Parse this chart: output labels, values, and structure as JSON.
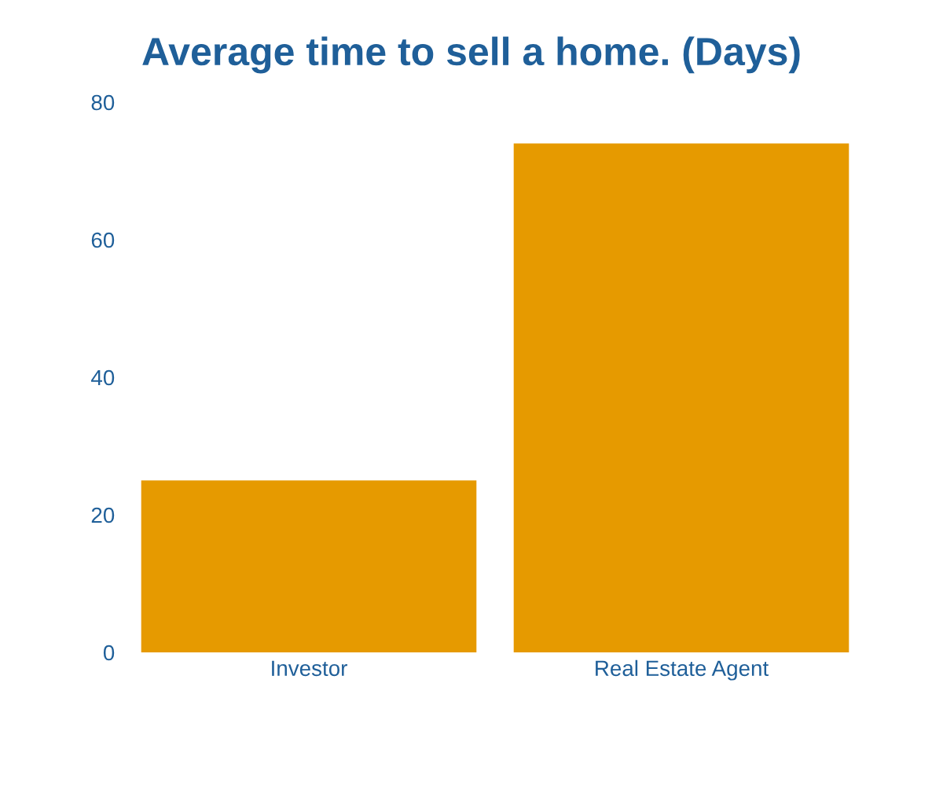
{
  "chart_data": {
    "type": "bar",
    "title": "Average time to sell a home. (Days)",
    "categories": [
      "Investor",
      "Real Estate Agent"
    ],
    "values": [
      25,
      74
    ],
    "color": "#e69a00",
    "ylim": [
      0,
      80
    ],
    "yticks": [
      0,
      20,
      40,
      60,
      80
    ],
    "grid": false,
    "legend": false
  }
}
